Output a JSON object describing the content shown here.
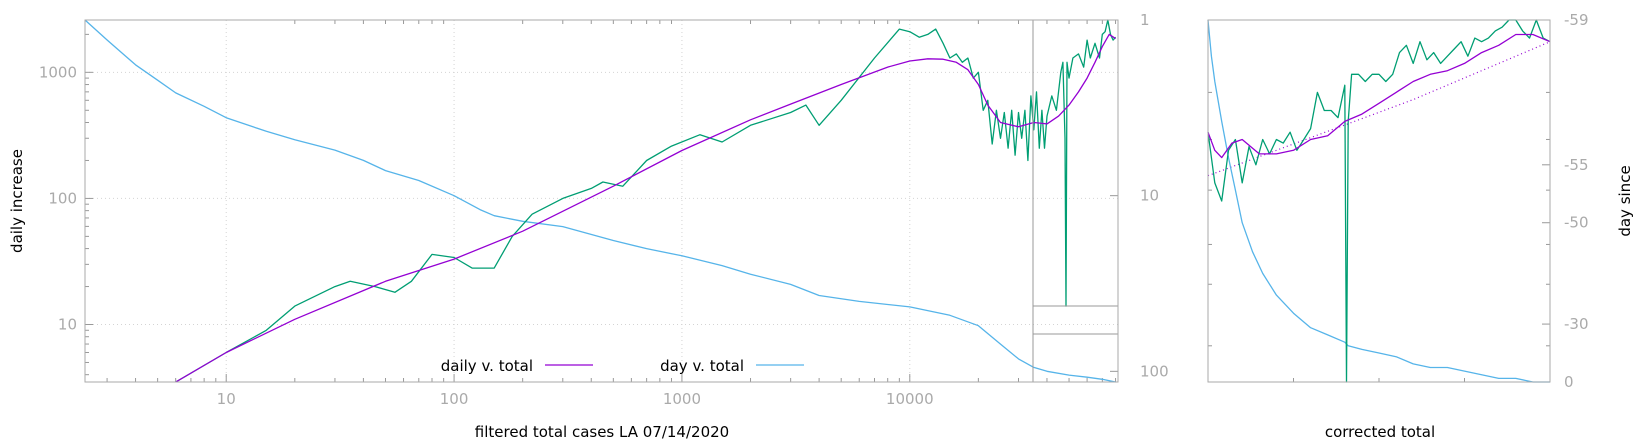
{
  "chart_data": [
    {
      "type": "line",
      "xlabel": "filtered total cases LA 07/14/2020",
      "ylabel": "daily increase",
      "x_scale": "log",
      "xlim": [
        2.4,
        82000
      ],
      "ylim": [
        3.5,
        2600
      ],
      "y2_scale": "log",
      "y2lim": [
        1,
        115
      ],
      "x_ticks": [
        10,
        100,
        1000,
        10000
      ],
      "x_tick_labels": [
        "10",
        "100",
        "1000",
        "10000"
      ],
      "y_ticks": [
        10,
        100,
        1000
      ],
      "y_tick_labels": [
        "10",
        "100",
        "1000"
      ],
      "y2_ticks": [
        1,
        10,
        100
      ],
      "y2_tick_labels": [
        "1",
        "10",
        "100"
      ],
      "grid": true,
      "legend_position": "bottom-center",
      "colors": {
        "daily_fit": "#9400d3",
        "daily_raw": "#009e73",
        "day": "#56b4e9",
        "frame": "#aaaaaa"
      },
      "series": [
        {
          "name": "daily v. total",
          "role": "fit",
          "axis": "y",
          "x": [
            6,
            10,
            20,
            50,
            100,
            200,
            500,
            1000,
            2000,
            3000,
            5000,
            8000,
            10000,
            12000,
            14000,
            16000,
            18000,
            20000,
            22000,
            25000,
            30000,
            35000,
            40000,
            45000,
            50000,
            55000,
            60000,
            65000,
            70000,
            75000,
            80000
          ],
          "y": [
            3.5,
            6,
            11,
            22,
            33,
            55,
            125,
            240,
            420,
            560,
            800,
            1100,
            1230,
            1280,
            1270,
            1200,
            1050,
            800,
            550,
            400,
            370,
            400,
            390,
            450,
            550,
            700,
            900,
            1200,
            1600,
            2000,
            1850
          ]
        },
        {
          "name": "",
          "role": "raw",
          "axis": "y",
          "x": [
            6,
            10,
            15,
            20,
            30,
            35,
            45,
            55,
            65,
            80,
            100,
            120,
            150,
            180,
            220,
            300,
            400,
            450,
            550,
            700,
            900,
            1200,
            1500,
            2000,
            3000,
            3500,
            4000,
            5000,
            7000,
            9000,
            10000,
            11000,
            12000,
            13000,
            14000,
            15000,
            16000,
            17000,
            18000,
            19000,
            20000,
            21000,
            22000,
            23000,
            24000,
            25000,
            26000,
            27000,
            28000,
            29000,
            30000,
            31000,
            32000,
            33000,
            34000,
            35000,
            36000,
            37000,
            38000,
            39000,
            40000,
            42000,
            44000,
            46000,
            47000,
            48000,
            48500,
            49000,
            50000,
            52000,
            55000,
            58000,
            60000,
            62000,
            65000,
            68000,
            70000,
            72000,
            74000,
            76000,
            78000,
            80000
          ],
          "y": [
            3.5,
            6,
            9,
            14,
            20,
            22,
            20,
            18,
            22,
            36,
            34,
            28,
            28,
            50,
            75,
            100,
            120,
            135,
            125,
            200,
            260,
            320,
            280,
            380,
            480,
            550,
            380,
            600,
            1300,
            2200,
            2100,
            1900,
            2000,
            2200,
            1700,
            1300,
            1400,
            1200,
            1300,
            900,
            1000,
            500,
            600,
            270,
            500,
            300,
            480,
            250,
            500,
            220,
            480,
            300,
            500,
            200,
            650,
            350,
            700,
            250,
            500,
            250,
            450,
            650,
            500,
            1000,
            1200,
            300,
            14,
            1200,
            900,
            1300,
            1400,
            1100,
            1800,
            1300,
            1700,
            1300,
            2000,
            2100,
            2700,
            2000,
            1800,
            1900
          ]
        },
        {
          "name": "day v. total",
          "role": "day",
          "axis": "y2",
          "x": [
            2.4,
            3,
            4,
            5,
            6,
            8,
            10,
            15,
            20,
            30,
            40,
            50,
            70,
            100,
            130,
            150,
            200,
            300,
            500,
            700,
            1000,
            1500,
            2000,
            3000,
            4000,
            6000,
            10000,
            15000,
            20000,
            25000,
            30000,
            35000,
            40000,
            50000,
            60000,
            70000,
            80000
          ],
          "y": [
            1,
            1.3,
            1.8,
            2.2,
            2.6,
            3.1,
            3.6,
            4.3,
            4.8,
            5.5,
            6.3,
            7.2,
            8.2,
            10,
            12,
            13,
            14,
            15,
            18,
            20,
            22,
            25,
            28,
            32,
            37,
            40,
            43,
            48,
            55,
            70,
            85,
            95,
            100,
            105,
            108,
            111,
            115
          ]
        }
      ]
    },
    {
      "type": "line",
      "xlabel": "corrected total",
      "y2label": "day since",
      "y2_ticks": [
        -59,
        -55,
        -50,
        -30,
        0
      ],
      "y2_tick_labels": [
        "-59",
        "-55",
        "-50",
        "-30",
        "0"
      ],
      "grid": false,
      "colors": {
        "daily_fit": "#9400d3",
        "daily_raw": "#009e73",
        "day": "#56b4e9",
        "trend": "#9400d3"
      },
      "series": [
        {
          "name": "",
          "role": "fit",
          "x": [
            0,
            0.02,
            0.04,
            0.07,
            0.1,
            0.15,
            0.2,
            0.25,
            0.3,
            0.35,
            0.4,
            0.45,
            0.5,
            0.55,
            0.6,
            0.65,
            0.7,
            0.75,
            0.8,
            0.85,
            0.9,
            0.95,
            1
          ],
          "y": [
            0.31,
            0.36,
            0.38,
            0.34,
            0.33,
            0.37,
            0.37,
            0.36,
            0.33,
            0.32,
            0.28,
            0.26,
            0.23,
            0.2,
            0.17,
            0.15,
            0.14,
            0.12,
            0.09,
            0.07,
            0.04,
            0.04,
            0.06
          ]
        },
        {
          "name": "",
          "role": "raw",
          "x": [
            0,
            0.02,
            0.04,
            0.06,
            0.08,
            0.1,
            0.12,
            0.14,
            0.16,
            0.18,
            0.2,
            0.22,
            0.24,
            0.26,
            0.28,
            0.3,
            0.32,
            0.34,
            0.36,
            0.38,
            0.4,
            0.405,
            0.41,
            0.42,
            0.44,
            0.46,
            0.48,
            0.5,
            0.52,
            0.54,
            0.56,
            0.58,
            0.6,
            0.62,
            0.64,
            0.66,
            0.68,
            0.7,
            0.72,
            0.74,
            0.76,
            0.78,
            0.8,
            0.82,
            0.84,
            0.86,
            0.88,
            0.9,
            0.92,
            0.94,
            0.96,
            0.98,
            1
          ],
          "y": [
            0.31,
            0.45,
            0.5,
            0.36,
            0.33,
            0.45,
            0.35,
            0.4,
            0.33,
            0.37,
            0.33,
            0.34,
            0.31,
            0.36,
            0.33,
            0.3,
            0.2,
            0.25,
            0.25,
            0.27,
            0.18,
            1,
            0.28,
            0.15,
            0.15,
            0.17,
            0.15,
            0.15,
            0.17,
            0.15,
            0.09,
            0.07,
            0.12,
            0.06,
            0.11,
            0.09,
            0.12,
            0.1,
            0.08,
            0.06,
            0.1,
            0.05,
            0.06,
            0.05,
            0.03,
            0.02,
            0.0,
            0.0,
            0.03,
            0.05,
            0.0,
            0.05,
            0.06
          ]
        },
        {
          "name": "",
          "role": "day",
          "x": [
            0,
            0.01,
            0.02,
            0.04,
            0.06,
            0.08,
            0.1,
            0.13,
            0.16,
            0.2,
            0.25,
            0.3,
            0.35,
            0.4,
            0.41,
            0.45,
            0.5,
            0.55,
            0.6,
            0.65,
            0.7,
            0.75,
            0.8,
            0.85,
            0.9,
            0.95,
            1
          ],
          "y": [
            0,
            0.1,
            0.17,
            0.28,
            0.38,
            0.47,
            0.56,
            0.64,
            0.7,
            0.76,
            0.81,
            0.85,
            0.87,
            0.89,
            0.9,
            0.91,
            0.92,
            0.93,
            0.95,
            0.96,
            0.96,
            0.97,
            0.98,
            0.99,
            0.99,
            1.0,
            1.0
          ]
        },
        {
          "name": "",
          "role": "trend",
          "x": [
            0,
            0.2,
            0.4,
            0.6,
            0.8,
            1
          ],
          "y": [
            0.43,
            0.36,
            0.29,
            0.22,
            0.14,
            0.06
          ]
        }
      ]
    }
  ]
}
